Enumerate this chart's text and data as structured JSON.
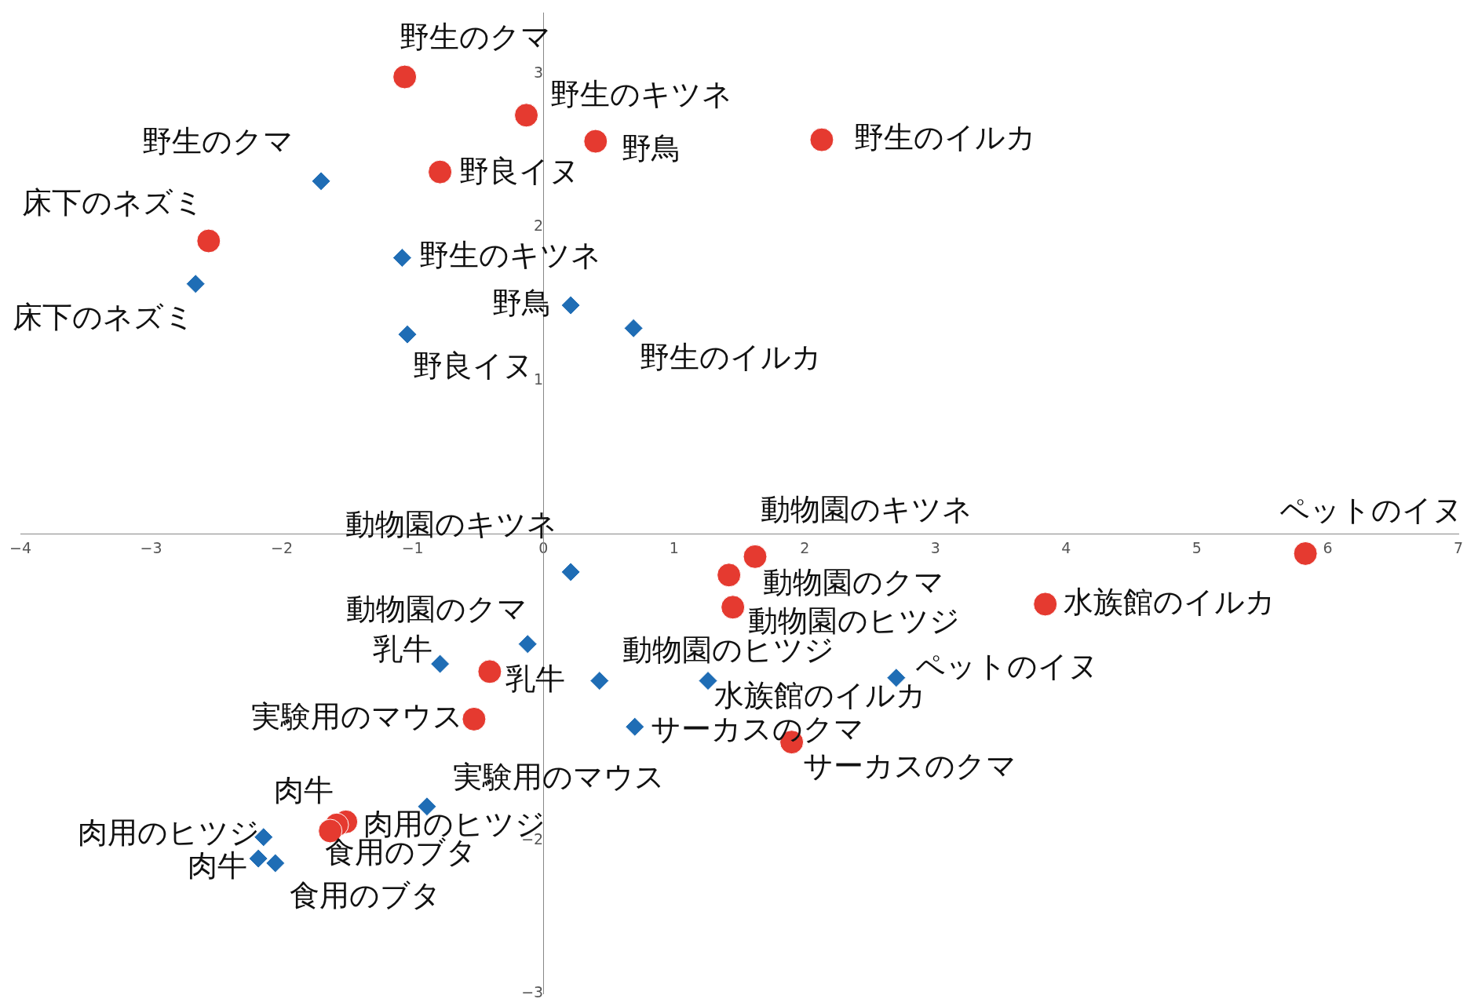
{
  "chart_data": {
    "type": "scatter",
    "xlim": [
      -4,
      7
    ],
    "ylim": [
      -3,
      3.4
    ],
    "xticks": [
      -4,
      -3,
      -2,
      -1,
      0,
      1,
      2,
      3,
      4,
      5,
      6,
      7
    ],
    "yticks": [
      -3,
      -2,
      1,
      2,
      3
    ],
    "grid": false,
    "legend": false,
    "series": [
      {
        "color": "#e53a30",
        "marker": "circle",
        "x": [
          -1.06,
          -0.13,
          0.4,
          2.13,
          -0.79,
          -2.56,
          1.62,
          1.42,
          1.45,
          5.83,
          3.84,
          -0.41,
          -0.53,
          1.9,
          -1.51,
          -1.58,
          -1.63
        ],
        "values": [
          2.98,
          2.73,
          2.56,
          2.57,
          2.36,
          1.91,
          -0.15,
          -0.27,
          -0.48,
          -0.13,
          -0.46,
          -0.9,
          -1.21,
          -1.36,
          -1.88,
          -1.9,
          -1.94
        ],
        "value_labels": [
          "野生のクマ",
          "野生のキツネ",
          "野鳥",
          "野生のイルカ",
          "野良イヌ",
          "床下のネズミ",
          "動物園のキツネ",
          "動物園のクマ",
          "動物園のヒツジ",
          "ペットのイヌ",
          "水族館のイルカ",
          "乳牛",
          "実験用のマウス",
          "サーカスのクマ",
          "肉用のヒツジ",
          "肉牛",
          "食用のブタ"
        ]
      },
      {
        "color": "#1f6db5",
        "marker": "diamond",
        "x": [
          -1.7,
          -2.66,
          -1.08,
          0.21,
          -1.04,
          0.69,
          0.21,
          -0.12,
          -0.79,
          0.43,
          1.26,
          2.7,
          0.7,
          -0.89,
          -2.14,
          -2.18,
          -2.05
        ],
        "values": [
          2.3,
          1.63,
          1.8,
          1.49,
          1.3,
          1.34,
          -0.25,
          -0.72,
          -0.85,
          -0.96,
          -0.96,
          -0.94,
          -1.26,
          -1.78,
          -1.98,
          -2.12,
          -2.15
        ],
        "value_labels": [
          "野生のクマ",
          "床下のネズミ",
          "野生のキツネ",
          "野鳥",
          "野良イヌ",
          "野生のイルカ",
          "動物園のキツネ",
          "動物園のクマ",
          "乳牛",
          "動物園のヒツジ",
          "水族館のイルカ",
          "ペットのイヌ",
          "サーカスのクマ",
          "実験用のマウス",
          "肉用のヒツジ",
          "肉牛",
          "食用のブタ"
        ]
      }
    ]
  }
}
